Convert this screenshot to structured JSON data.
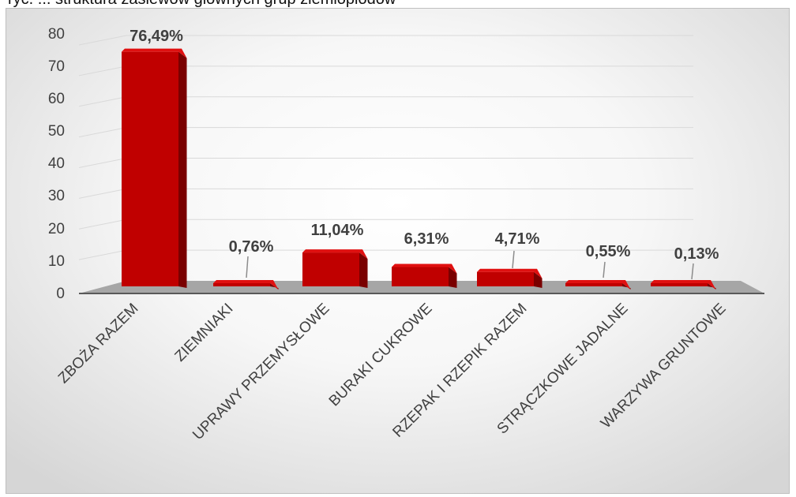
{
  "header": {
    "cut_text": "ryc. ... struktura zasiewów głównych grup ziemiopłodów"
  },
  "chart_data": {
    "type": "bar",
    "style": "3d-column",
    "title": "",
    "xlabel": "",
    "ylabel": "",
    "ylim": [
      0,
      80
    ],
    "yticks": [
      0,
      10,
      20,
      30,
      40,
      50,
      60,
      70,
      80
    ],
    "grid": true,
    "legend": "none",
    "categories": [
      "ZBOŻA RAZEM",
      "ZIEMNIAKI",
      "UPRAWY PRZEMYSŁOWE",
      "BURAKI CUKROWE",
      "RZEPAK I RZEPIK RAZEM",
      "STRĄCZKOWE JADALNE",
      "WARZYWA GRUNTOWE"
    ],
    "values": [
      76.49,
      0.76,
      11.04,
      6.31,
      4.71,
      0.55,
      0.13
    ],
    "data_labels": [
      "76,49%",
      "0,76%",
      "11,04%",
      "6,31%",
      "4,71%",
      "0,55%",
      "0,13%"
    ],
    "colors": {
      "bar_front": "#c00000",
      "bar_side": "#7a0000",
      "bar_top": "#e01010",
      "floor": "#a6a6a6",
      "grid": "#d9d9d9"
    }
  }
}
